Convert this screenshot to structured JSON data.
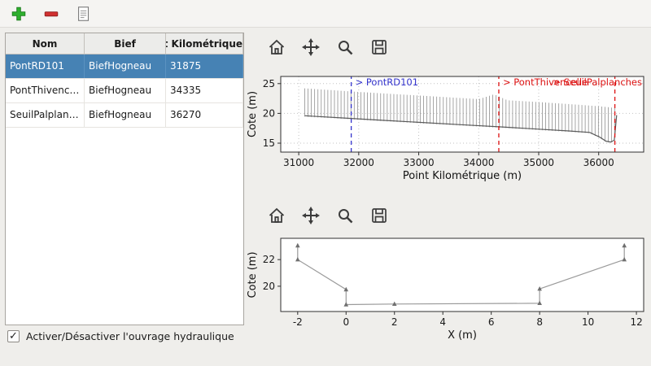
{
  "toolbar": {
    "icons": [
      "add-icon",
      "remove-icon",
      "edit-icon"
    ],
    "add_color": "#2eb02e",
    "remove_color": "#d13030"
  },
  "table": {
    "columns": [
      "Nom",
      "Bief",
      "Point Kilométrique"
    ],
    "rows": [
      {
        "nom": "PontRD101",
        "bief": "BiefHogneau",
        "pk": "31875",
        "selected": true
      },
      {
        "nom": "PontThivencelle",
        "bief": "BiefHogneau",
        "pk": "34335",
        "selected": false
      },
      {
        "nom": "SeuilPalplanches",
        "bief": "BiefHogneau",
        "pk": "36270",
        "selected": false
      }
    ],
    "selection_color": "#4682b4"
  },
  "checkbox": {
    "label": "Activer/Désactiver l'ouvrage hydraulique",
    "checked": true,
    "mark": "✓"
  },
  "figures": [
    {
      "toolbar_icons": [
        "home-icon",
        "pan-icon",
        "zoom-icon",
        "save-icon"
      ]
    },
    {
      "toolbar_icons": [
        "home-icon",
        "pan-icon",
        "zoom-icon",
        "save-icon"
      ]
    }
  ],
  "chart_data": [
    {
      "type": "line",
      "title": "",
      "xlabel": "Point Kilométrique (m)",
      "ylabel": "Cote (m)",
      "xlim": [
        30700,
        36750
      ],
      "ylim": [
        13.5,
        26.2
      ],
      "xticks": [
        31000,
        32000,
        33000,
        34000,
        35000,
        36000
      ],
      "yticks": [
        15,
        20,
        25
      ],
      "grid": true,
      "series": [
        {
          "name": "cross-sections",
          "type": "vlines",
          "start": 31100,
          "end": 36300,
          "step": 55,
          "color": "#8f8f8f",
          "bottom_offset": 0.15,
          "top": [
            [
              31100,
              24.2
            ],
            [
              32000,
              23.6
            ],
            [
              33000,
              23.0
            ],
            [
              34000,
              22.4
            ],
            [
              34260,
              23.2
            ],
            [
              34480,
              22.2
            ],
            [
              35000,
              21.9
            ],
            [
              35600,
              21.5
            ],
            [
              36000,
              21.2
            ],
            [
              36300,
              20.9
            ]
          ],
          "bottom": [
            [
              31100,
              19.6
            ],
            [
              31700,
              19.25
            ],
            [
              32300,
              18.9
            ],
            [
              33000,
              18.5
            ],
            [
              33700,
              18.1
            ],
            [
              34335,
              17.75
            ],
            [
              35000,
              17.35
            ],
            [
              35500,
              17.05
            ],
            [
              35850,
              16.8
            ],
            [
              36020,
              16.0
            ],
            [
              36120,
              15.35
            ],
            [
              36200,
              15.2
            ],
            [
              36260,
              15.5
            ],
            [
              36300,
              19.7
            ]
          ]
        },
        {
          "name": "thalweg",
          "type": "line",
          "color": "#5a5a5a",
          "width": 1.2,
          "points": [
            [
              31100,
              19.6
            ],
            [
              31700,
              19.25
            ],
            [
              32300,
              18.9
            ],
            [
              33000,
              18.5
            ],
            [
              33700,
              18.1
            ],
            [
              34335,
              17.75
            ],
            [
              35000,
              17.35
            ],
            [
              35500,
              17.05
            ],
            [
              35850,
              16.8
            ],
            [
              36020,
              16.0
            ],
            [
              36120,
              15.35
            ],
            [
              36200,
              15.2
            ],
            [
              36260,
              15.5
            ],
            [
              36300,
              19.7
            ]
          ]
        }
      ],
      "vmarkers": [
        {
          "x": 31875,
          "label": "> PontRD101",
          "color": "#3333cc",
          "label_anchor": "start"
        },
        {
          "x": 34335,
          "label": "> PontThivencelle",
          "color": "#dd1111",
          "label_anchor": "start"
        },
        {
          "x": 36270,
          "label": "> SeuilPalplanches",
          "color": "#dd1111",
          "label_anchor": "end"
        }
      ]
    },
    {
      "type": "line",
      "title": "",
      "xlabel": "X (m)",
      "ylabel": "Cote (m)",
      "xlim": [
        -2.7,
        12.3
      ],
      "ylim": [
        18.1,
        23.6
      ],
      "xticks": [
        -2,
        0,
        2,
        4,
        6,
        8,
        10,
        12
      ],
      "yticks": [
        20,
        22
      ],
      "grid": false,
      "series": [
        {
          "name": "cross-section-profile",
          "type": "line",
          "color": "#9a9a9a",
          "width": 1.2,
          "marker": true,
          "marker_color": "#6f6f6f",
          "points": [
            [
              -2,
              23.05
            ],
            [
              -2,
              22.0
            ],
            [
              0,
              19.75
            ],
            [
              0,
              18.62
            ],
            [
              2,
              18.66
            ],
            [
              8,
              18.72
            ],
            [
              8,
              19.8
            ],
            [
              11.5,
              22.0
            ],
            [
              11.5,
              23.05
            ]
          ]
        }
      ],
      "vmarkers": []
    }
  ]
}
